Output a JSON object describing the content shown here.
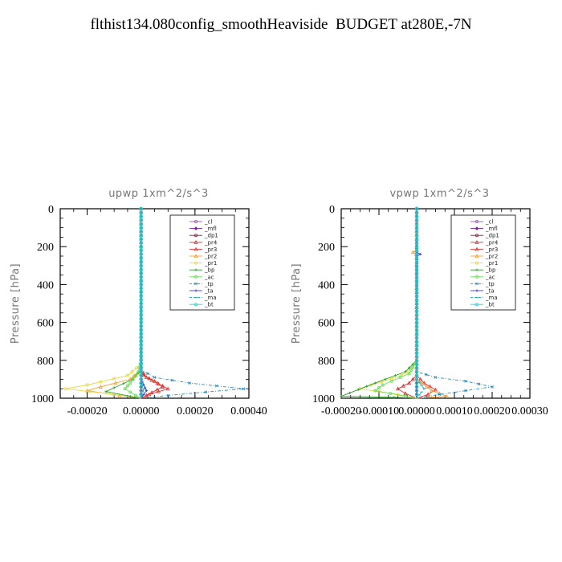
{
  "title": "flthist134.080config_smoothHeaviside  BUDGET at280E,-7N",
  "colors": {
    "_cl": "#9b59b6",
    "_mfl": "#7b1fa2",
    "_dp1": "#8b1a3a",
    "_pr4": "#d32f2f",
    "_pr3": "#e53935",
    "_pr2": "#f0a030",
    "_pr1": "#e6d84a",
    "_bp": "#2e9e2e",
    "_ac": "#66dd55",
    "_tp": "#2a8fbf",
    "_ta": "#3b3bd0",
    "_ma": "#1fa0c0",
    "_bt": "#26d0d0"
  },
  "chart_data": [
    {
      "type": "line",
      "title": "upwp   1xm^2/s^3",
      "ylabel": "Pressure [hPa]",
      "xlim": [
        -0.0003,
        0.0004
      ],
      "ylim": [
        1000,
        0
      ],
      "xticks": [
        "-0.00020",
        "0.00000",
        "0.00020",
        "0.00040"
      ],
      "xtick_values": [
        -0.0002,
        0.0,
        0.0002,
        0.0004
      ],
      "yticks": [
        "0",
        "200",
        "400",
        "600",
        "800",
        "1000"
      ],
      "legend_position": "top-right",
      "series": [
        {
          "name": "_cl",
          "points": [
            [
              0,
              0
            ],
            [
              0,
              500
            ],
            [
              0,
              1000
            ]
          ]
        },
        {
          "name": "_mfl",
          "points": [
            [
              0,
              0
            ],
            [
              0,
              500
            ],
            [
              0,
              1000
            ]
          ]
        },
        {
          "name": "_dp1",
          "points": [
            [
              0,
              0
            ],
            [
              0,
              500
            ],
            [
              0,
              1000
            ]
          ]
        },
        {
          "name": "_pr4",
          "points": [
            [
              0,
              0
            ],
            [
              0,
              850
            ],
            [
              1e-05,
              880
            ],
            [
              5e-05,
              910
            ],
            [
              8e-05,
              940
            ],
            [
              4e-05,
              970
            ],
            [
              0,
              1000
            ]
          ]
        },
        {
          "name": "_pr3",
          "points": [
            [
              0,
              0
            ],
            [
              0,
              850
            ],
            [
              2e-05,
              890
            ],
            [
              6e-05,
              920
            ],
            [
              0.0001,
              950
            ],
            [
              3e-05,
              980
            ],
            [
              0,
              1000
            ]
          ]
        },
        {
          "name": "_pr2",
          "points": [
            [
              0,
              0
            ],
            [
              0,
              850
            ],
            [
              -4e-05,
              900
            ],
            [
              -0.00015,
              940
            ],
            [
              -0.0002,
              960
            ],
            [
              -8e-05,
              985
            ],
            [
              0,
              1000
            ]
          ]
        },
        {
          "name": "_pr1",
          "points": [
            [
              0,
              0
            ],
            [
              0,
              820
            ],
            [
              -5e-05,
              880
            ],
            [
              -0.0002,
              930
            ],
            [
              -0.00028,
              950
            ],
            [
              -0.0001,
              980
            ],
            [
              0,
              1000
            ]
          ]
        },
        {
          "name": "_bp",
          "points": [
            [
              0,
              0
            ],
            [
              0,
              850
            ],
            [
              -3e-05,
              900
            ],
            [
              -0.0001,
              945
            ],
            [
              -0.00013,
              965
            ],
            [
              -4e-05,
              990
            ],
            [
              0,
              1000
            ]
          ]
        },
        {
          "name": "_ac",
          "points": [
            [
              0,
              0
            ],
            [
              0,
              800
            ],
            [
              -1e-05,
              860
            ],
            [
              -4e-05,
              920
            ],
            [
              -6e-05,
              950
            ],
            [
              -2e-05,
              985
            ],
            [
              0,
              1000
            ]
          ]
        },
        {
          "name": "_tp",
          "points": [
            [
              0,
              0
            ],
            [
              0,
              850
            ],
            [
              5e-05,
              890
            ],
            [
              0.00018,
              920
            ],
            [
              0.00038,
              950
            ],
            [
              0.0001,
              985
            ],
            [
              0,
              1000
            ]
          ]
        },
        {
          "name": "_ta",
          "points": [
            [
              0,
              0
            ],
            [
              0,
              900
            ],
            [
              1e-05,
              930
            ],
            [
              2e-05,
              960
            ],
            [
              0,
              1000
            ]
          ]
        },
        {
          "name": "_ma",
          "points": [
            [
              0,
              0
            ],
            [
              0,
              900
            ],
            [
              1e-05,
              950
            ],
            [
              0,
              1000
            ]
          ]
        },
        {
          "name": "_bt",
          "points": [
            [
              0,
              0
            ],
            [
              0,
              1000
            ]
          ]
        }
      ]
    },
    {
      "type": "line",
      "title": "vpwp   1xm^2/s^3",
      "ylabel": "Pressure [hPa]",
      "xlim": [
        -0.0002,
        0.0003
      ],
      "ylim": [
        1000,
        0
      ],
      "xticks": [
        "-0.00020",
        "-0.00010",
        "0.00000",
        "0.00010",
        "0.00020",
        "0.00030"
      ],
      "xtick_values": [
        -0.0002,
        -0.0001,
        0.0,
        0.0001,
        0.0002,
        0.0003
      ],
      "yticks": [
        "0",
        "200",
        "400",
        "600",
        "800",
        "1000"
      ],
      "legend_position": "top-right",
      "series": [
        {
          "name": "_cl",
          "points": [
            [
              0,
              0
            ],
            [
              0,
              500
            ],
            [
              0,
              1000
            ]
          ]
        },
        {
          "name": "_mfl",
          "points": [
            [
              0,
              0
            ],
            [
              0,
              500
            ],
            [
              0,
              1000
            ]
          ]
        },
        {
          "name": "_dp1",
          "points": [
            [
              0,
              0
            ],
            [
              0,
              500
            ],
            [
              0,
              1000
            ]
          ]
        },
        {
          "name": "_pr4",
          "points": [
            [
              0,
              0
            ],
            [
              0,
              880
            ],
            [
              -2e-05,
              920
            ],
            [
              -5e-05,
              950
            ],
            [
              -3e-05,
              975
            ],
            [
              0,
              1000
            ]
          ]
        },
        {
          "name": "_pr3",
          "points": [
            [
              0,
              0
            ],
            [
              0,
              880
            ],
            [
              2e-05,
              920
            ],
            [
              5e-05,
              955
            ],
            [
              3e-05,
              980
            ],
            [
              0,
              1000
            ]
          ]
        },
        {
          "name": "_pr2",
          "points": [
            [
              0,
              0
            ],
            [
              0,
              220
            ],
            [
              -1e-05,
              230
            ],
            [
              0,
              240
            ],
            [
              0,
              900
            ],
            [
              4e-05,
              960
            ],
            [
              8e-05,
              990
            ],
            [
              0,
              1000
            ]
          ]
        },
        {
          "name": "_pr1",
          "points": [
            [
              0,
              0
            ],
            [
              0,
              820
            ],
            [
              -4e-05,
              880
            ],
            [
              -0.00012,
              930
            ],
            [
              -0.00015,
              950
            ],
            [
              -5e-05,
              980
            ],
            [
              0,
              1000
            ]
          ]
        },
        {
          "name": "_bp",
          "points": [
            [
              0,
              0
            ],
            [
              0,
              800
            ],
            [
              -3e-05,
              860
            ],
            [
              -0.00011,
              920
            ],
            [
              -0.0002,
              990
            ],
            [
              -6e-05,
              995
            ],
            [
              0,
              1000
            ]
          ]
        },
        {
          "name": "_ac",
          "points": [
            [
              0,
              0
            ],
            [
              0,
              800
            ],
            [
              -2e-05,
              870
            ],
            [
              -9e-05,
              930
            ],
            [
              -0.00011,
              960
            ],
            [
              -3e-05,
              990
            ],
            [
              0,
              1000
            ]
          ]
        },
        {
          "name": "_tp",
          "points": [
            [
              0,
              0
            ],
            [
              0,
              860
            ],
            [
              5e-05,
              890
            ],
            [
              0.00013,
              910
            ],
            [
              0.0002,
              940
            ],
            [
              6e-05,
              980
            ],
            [
              0,
              1000
            ]
          ]
        },
        {
          "name": "_ta",
          "points": [
            [
              0,
              0
            ],
            [
              0,
              230
            ],
            [
              1e-05,
              240
            ],
            [
              0,
              250
            ],
            [
              0,
              1000
            ]
          ]
        },
        {
          "name": "_ma",
          "points": [
            [
              0,
              0
            ],
            [
              0,
              900
            ],
            [
              2e-05,
              950
            ],
            [
              0,
              1000
            ]
          ]
        },
        {
          "name": "_bt",
          "points": [
            [
              0,
              0
            ],
            [
              0,
              1000
            ]
          ]
        }
      ]
    }
  ]
}
